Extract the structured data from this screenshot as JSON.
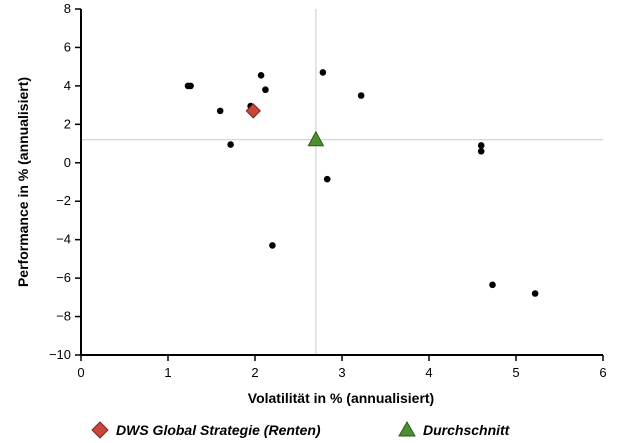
{
  "chart_data": {
    "type": "scatter",
    "xlabel": "Volatilität in % (annualisiert)",
    "ylabel": "Performance in % (annualisiert)",
    "xlim": [
      0,
      6
    ],
    "ylim": [
      -10,
      8
    ],
    "x_ticks": [
      0,
      1,
      2,
      3,
      4,
      5,
      6
    ],
    "y_ticks": [
      -10,
      -8,
      -6,
      -4,
      -2,
      0,
      2,
      4,
      6,
      8
    ],
    "x_tick_labels": [
      "0",
      "1",
      "2",
      "3",
      "4",
      "5",
      "6"
    ],
    "y_tick_labels": [
      "−10",
      "−8",
      "−6",
      "−4",
      "−2",
      "0",
      "2",
      "4",
      "6",
      "8"
    ],
    "grid": false,
    "reference_lines": {
      "x": 2.7,
      "y": 1.2
    },
    "legend_position": "bottom",
    "series": [
      {
        "marker": "circle",
        "color": "#000000",
        "points": [
          {
            "x": 1.23,
            "y": 4.0
          },
          {
            "x": 1.26,
            "y": 4.0
          },
          {
            "x": 1.6,
            "y": 2.7
          },
          {
            "x": 1.72,
            "y": 0.95
          },
          {
            "x": 1.95,
            "y": 2.95
          },
          {
            "x": 2.07,
            "y": 4.55
          },
          {
            "x": 2.12,
            "y": 3.8
          },
          {
            "x": 2.2,
            "y": -4.3
          },
          {
            "x": 2.78,
            "y": 4.7
          },
          {
            "x": 2.83,
            "y": -0.85
          },
          {
            "x": 3.22,
            "y": 3.5
          },
          {
            "x": 4.6,
            "y": 0.9
          },
          {
            "x": 4.6,
            "y": 0.6
          },
          {
            "x": 4.73,
            "y": -6.35
          },
          {
            "x": 5.22,
            "y": -6.8
          }
        ]
      },
      {
        "name": "DWS Global Strategie (Renten)",
        "marker": "diamond",
        "color": "#c8463c",
        "points": [
          {
            "x": 1.98,
            "y": 2.7
          }
        ]
      },
      {
        "name": "Durchschnitt",
        "marker": "triangle",
        "color": "#4f8f2f",
        "points": [
          {
            "x": 2.7,
            "y": 1.2
          }
        ]
      }
    ]
  }
}
